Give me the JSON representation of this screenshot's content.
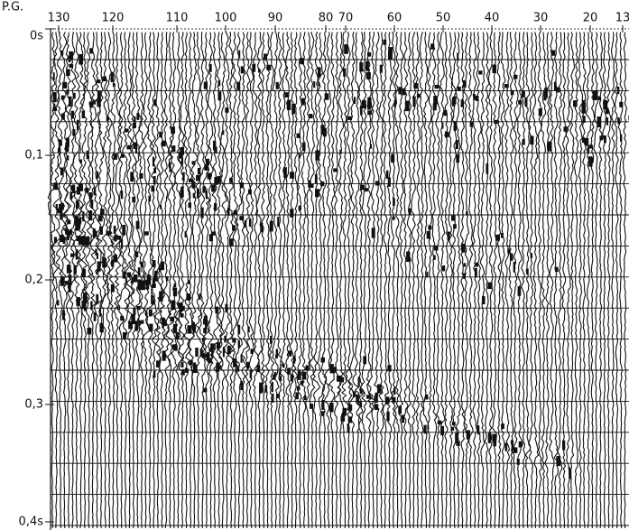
{
  "axis_top": {
    "label": "P.G.",
    "ticks": [
      "130",
      "120",
      "110",
      "100",
      "90",
      "80",
      "70",
      "60",
      "50",
      "40",
      "30",
      "20",
      "13"
    ]
  },
  "axis_left": {
    "ticks": [
      "0s",
      "0,1",
      "0,2",
      "0,3",
      "0,4s"
    ]
  }
}
